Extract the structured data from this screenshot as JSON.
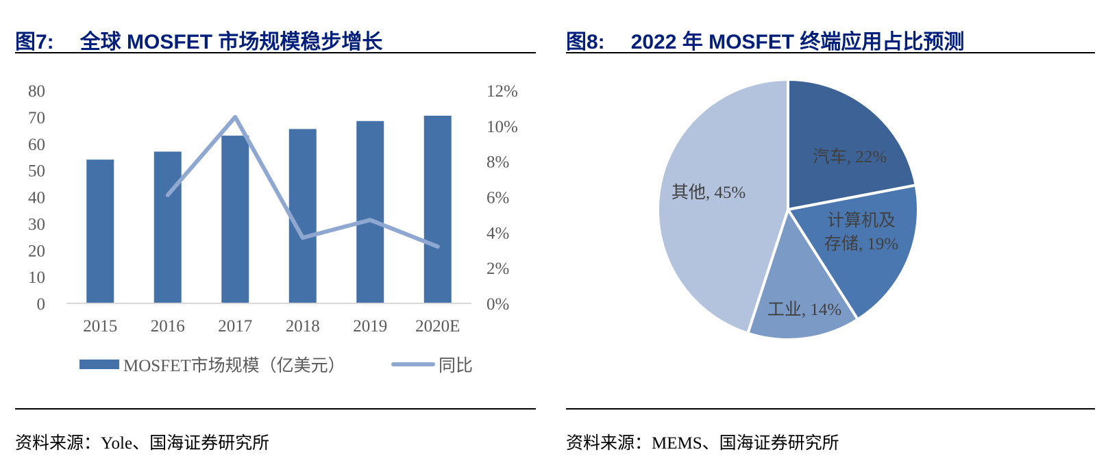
{
  "left": {
    "fig_no": "图7:",
    "title": "全球 MOSFET 市场规模稳步增长",
    "source": "资料来源：Yole、国海证券研究所"
  },
  "right": {
    "fig_no": "图8:",
    "title": "2022 年 MOSFET 终端应用占比预测",
    "source": "资料来源：MEMS、国海证券研究所"
  },
  "chart_data": [
    {
      "type": "bar",
      "categories": [
        "2015",
        "2016",
        "2017",
        "2018",
        "2019",
        "2020E"
      ],
      "series": [
        {
          "name": "MOSFET市场规模（亿美元）",
          "type": "bar",
          "axis": "left",
          "values": [
            54,
            57,
            63,
            65.5,
            68.5,
            70.5
          ],
          "color": "#4472a8"
        },
        {
          "name": "同比",
          "type": "line",
          "axis": "right",
          "values": [
            null,
            6.1,
            10.5,
            3.7,
            4.7,
            3.2
          ],
          "color": "#8fa8d1"
        }
      ],
      "y_left": {
        "min": 0,
        "max": 80,
        "ticks": [
          "0",
          "10",
          "20",
          "30",
          "40",
          "50",
          "60",
          "70",
          "80"
        ]
      },
      "y_right": {
        "min": 0,
        "max": 12,
        "ticks": [
          "0%",
          "2%",
          "4%",
          "6%",
          "8%",
          "10%",
          "12%"
        ]
      },
      "grid": false,
      "legend_placement": "bottom"
    },
    {
      "type": "pie",
      "slices": [
        {
          "label": "汽车, 22%",
          "value": 22,
          "color": "#3c6296"
        },
        {
          "label": "计算机及\n存储, 19%",
          "value": 19,
          "color": "#4a77b0"
        },
        {
          "label": "工业, 14%",
          "value": 14,
          "color": "#7c9ac6"
        },
        {
          "label": "其他, 45%",
          "value": 45,
          "color": "#b3c3dd"
        }
      ],
      "start_angle": "12 o'clock",
      "direction": "clockwise"
    }
  ]
}
